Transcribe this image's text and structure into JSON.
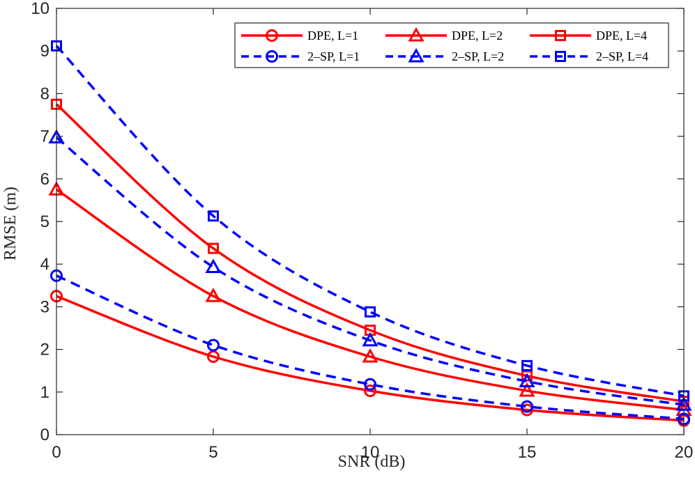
{
  "chart_data": {
    "type": "line",
    "title": "",
    "xlabel": "SNR (dB)",
    "ylabel": "RMSE (m)",
    "x": [
      0,
      5,
      10,
      15,
      20
    ],
    "xlim": [
      0,
      20
    ],
    "ylim": [
      0,
      10
    ],
    "xticks": [
      "0",
      "5",
      "10",
      "15",
      "20"
    ],
    "yticks": [
      "0",
      "1",
      "2",
      "3",
      "4",
      "5",
      "6",
      "7",
      "8",
      "9",
      "10"
    ],
    "grid": false,
    "legend_position": "top-right",
    "series": [
      {
        "name": "DPE, L=1",
        "color": "#ff0000",
        "dash": "solid",
        "marker": "circle",
        "values": [
          3.25,
          1.83,
          1.03,
          0.58,
          0.33
        ]
      },
      {
        "name": "DPE, L=2",
        "color": "#ff0000",
        "dash": "solid",
        "marker": "triangle",
        "values": [
          5.75,
          3.25,
          1.83,
          1.03,
          0.58
        ]
      },
      {
        "name": "DPE, L=4",
        "color": "#ff0000",
        "dash": "solid",
        "marker": "square",
        "values": [
          7.75,
          4.37,
          2.45,
          1.38,
          0.78
        ]
      },
      {
        "name": "2–SP, L=1",
        "color": "#0000ff",
        "dash": "dashed",
        "marker": "circle",
        "values": [
          3.73,
          2.1,
          1.18,
          0.66,
          0.37
        ]
      },
      {
        "name": "2–SP, L=2",
        "color": "#0000ff",
        "dash": "dashed",
        "marker": "triangle",
        "values": [
          6.97,
          3.93,
          2.21,
          1.25,
          0.7
        ]
      },
      {
        "name": "2–SP, L=4",
        "color": "#0000ff",
        "dash": "dashed",
        "marker": "square",
        "values": [
          9.12,
          5.13,
          2.88,
          1.62,
          0.91
        ]
      }
    ]
  }
}
